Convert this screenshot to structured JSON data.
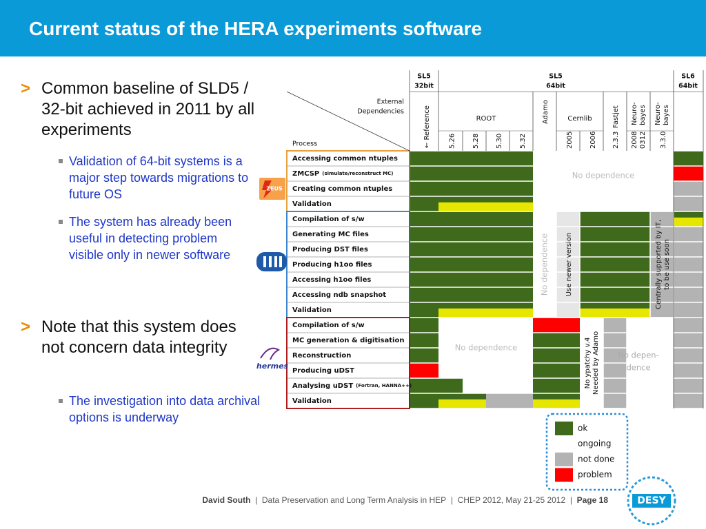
{
  "header": {
    "title": "Current status of the HERA experiments software"
  },
  "bullets": [
    {
      "marker": ">",
      "text": "Common baseline of SLD5 / 32-bit achieved in 2011 by all experiments",
      "sub": [
        "Validation of 64-bit systems is a major step towards migrations to future OS",
        "The system has already been useful in detecting problem visible only in newer software"
      ]
    },
    {
      "marker": ">",
      "text": "Note that this system does not concern data integrity",
      "sub": [
        "The investigation into data archival options is underway"
      ]
    }
  ],
  "table": {
    "platforms": [
      [
        "SL5",
        "32bit"
      ],
      [
        "SL5",
        "64bit"
      ],
      [
        "SL6",
        "64bit"
      ]
    ],
    "corner": {
      "top": [
        "External",
        "Dependencies"
      ],
      "bottom": "Process"
    },
    "reference": "←  Reference",
    "root": "ROOT",
    "root_versions": [
      "5.26",
      "5.28",
      "5.30",
      "5.32"
    ],
    "adamo": "Adamo",
    "cernlib": "Cernlib",
    "cernlib_versions": [
      "2005",
      "2006"
    ],
    "fastjet": "Fastjet",
    "fastjet_version": "2.3.3",
    "neurobayes": [
      {
        "name": [
          "Neuro-",
          "bayes"
        ],
        "version": [
          "2008",
          "0312"
        ]
      },
      {
        "name": [
          "Neuro-",
          "bayes"
        ],
        "version": [
          "3.3.0"
        ]
      }
    ],
    "experiments": [
      {
        "logo": "ZEUS",
        "processes": [
          {
            "name": "Accessing common ntuples"
          },
          {
            "name": "ZMCSP",
            "note": "(simulate/reconstruct MC)"
          },
          {
            "name": "Creating common ntuples"
          },
          {
            "name": "Validation"
          }
        ]
      },
      {
        "processes": [
          {
            "name": "Compilation of s/w"
          },
          {
            "name": "Generating MC files"
          },
          {
            "name": "Producing DST files"
          },
          {
            "name": "Producing h1oo files"
          },
          {
            "name": "Accessing h1oo files"
          },
          {
            "name": "Accessing ndb snapshot"
          },
          {
            "name": "Validation"
          }
        ]
      },
      {
        "logo": "hermes",
        "processes": [
          {
            "name": "Compilation of  s/w"
          },
          {
            "name": "MC  generation & digitisation"
          },
          {
            "name": "Reconstruction"
          },
          {
            "name": "Producing uDST"
          },
          {
            "name": "Analysing uDST",
            "note": "(Fortran, HANNA++)"
          },
          {
            "name": "Validation"
          }
        ]
      }
    ],
    "notes": [
      [
        "No dependence"
      ],
      [
        "No dependence"
      ],
      [
        "Use newer version"
      ],
      [
        "Centrally supported by IT,",
        "to be use soon"
      ],
      [
        "No dependence"
      ],
      [
        "No ypatchy v.4",
        "Needed by Adamo"
      ],
      [
        "No depen-",
        "dence"
      ]
    ]
  },
  "legend": [
    "ok",
    "ongoing",
    "not done",
    "problem"
  ],
  "footer": {
    "author": "David South",
    "separator": "|",
    "parts": [
      "Data Preservation and Long Term Analysis in HEP",
      "CHEP 2012, May 21-25 2012"
    ],
    "page": "Page 18"
  },
  "logo": "DESY"
}
